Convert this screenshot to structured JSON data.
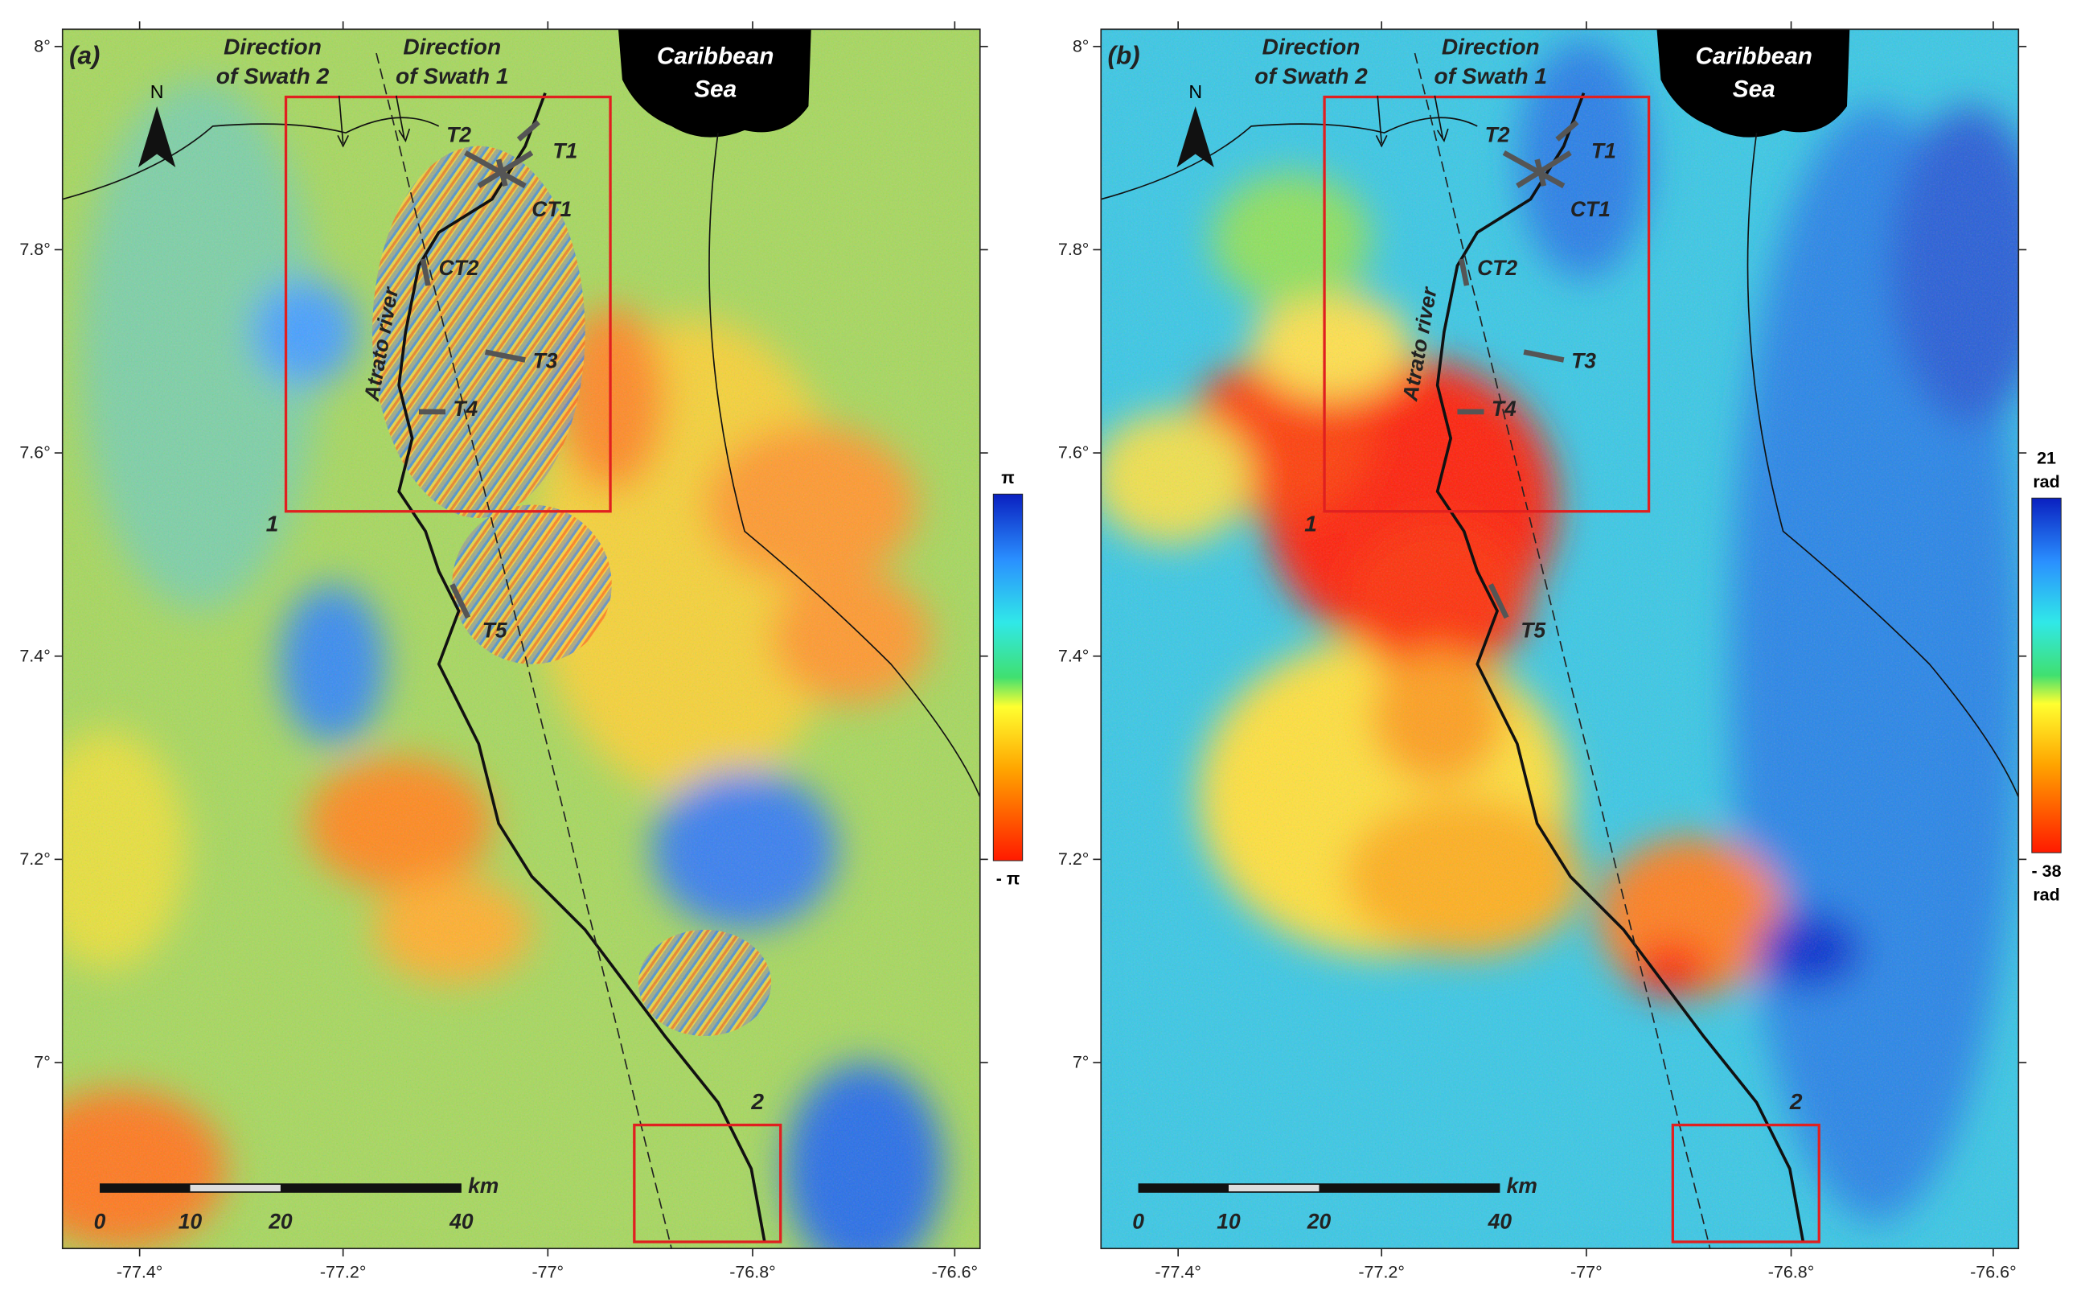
{
  "panels": [
    {
      "label": "(a)",
      "north": "N",
      "sea": [
        "Caribbean",
        "Sea"
      ],
      "swath2": [
        "Direction",
        "of Swath 2"
      ],
      "swath1": [
        "Direction",
        "of Swath 1"
      ],
      "transects": [
        "T2",
        "T1",
        "CT1",
        "CT2",
        "T3",
        "T4",
        "T5"
      ],
      "river": "Atrato river",
      "boxes": [
        "1",
        "2"
      ],
      "scale": [
        "0",
        "10",
        "20",
        "40",
        "km"
      ],
      "lat_ticks": [
        "8°",
        "7.8°",
        "7.6°",
        "7.4°",
        "7.2°",
        "7°"
      ],
      "lon_ticks": [
        "-77.4°",
        "-77.2°",
        "-77°",
        "-76.8°",
        "-76.6°"
      ],
      "colorbar": {
        "top": [
          "π"
        ],
        "bottom": [
          "- π"
        ]
      }
    },
    {
      "label": "(b)",
      "north": "N",
      "sea": [
        "Caribbean",
        "Sea"
      ],
      "swath2": [
        "Direction",
        "of Swath 2"
      ],
      "swath1": [
        "Direction",
        "of Swath 1"
      ],
      "transects": [
        "T2",
        "T1",
        "CT1",
        "CT2",
        "T3",
        "T4",
        "T5"
      ],
      "river": "Atrato river",
      "boxes": [
        "1",
        "2"
      ],
      "scale": [
        "0",
        "10",
        "20",
        "40",
        "km"
      ],
      "lat_ticks": [
        "8°",
        "7.8°",
        "7.6°",
        "7.4°",
        "7.2°",
        "7°"
      ],
      "lon_ticks": [
        "-77.4°",
        "-77.2°",
        "-77°",
        "-76.8°",
        "-76.6°"
      ],
      "colorbar": {
        "top": [
          "21",
          "rad"
        ],
        "bottom": [
          "- 38",
          "rad"
        ]
      }
    }
  ]
}
